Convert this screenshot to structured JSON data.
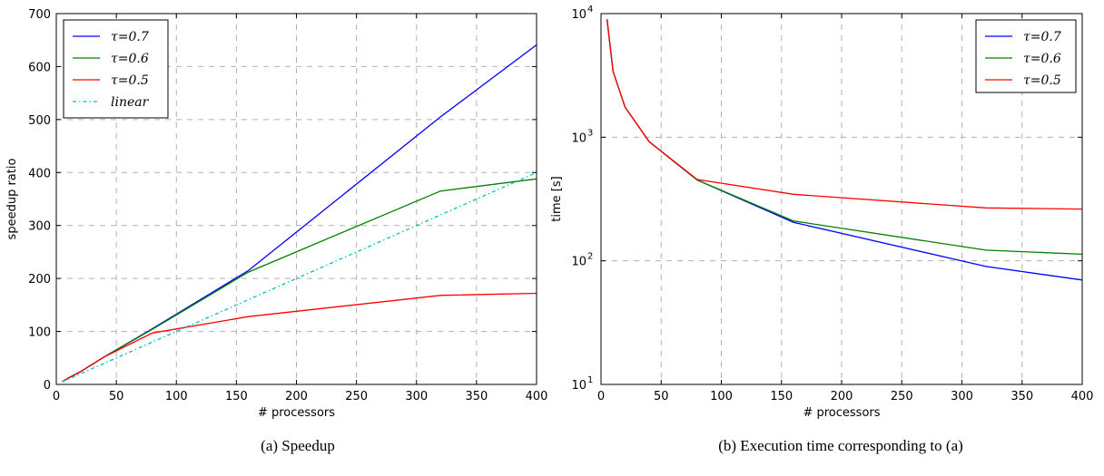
{
  "chart_data": [
    {
      "type": "line",
      "caption": "(a) Speedup",
      "xlabel": "# processors",
      "ylabel": "speedup ratio",
      "xlim": [
        0,
        400
      ],
      "ylim": [
        0,
        700
      ],
      "xticks": [
        0,
        50,
        100,
        150,
        200,
        250,
        300,
        350,
        400
      ],
      "yticks": [
        0,
        100,
        200,
        300,
        400,
        500,
        600,
        700
      ],
      "grid": true,
      "legend_position": "top-left",
      "series": [
        {
          "name": "τ=0.7",
          "color": "#0000ff",
          "style": "solid",
          "x": [
            5,
            10,
            20,
            40,
            80,
            160,
            320,
            400
          ],
          "y": [
            5,
            12,
            24,
            52,
            105,
            215,
            505,
            641
          ]
        },
        {
          "name": "τ=0.6",
          "color": "#008000",
          "style": "solid",
          "x": [
            5,
            10,
            20,
            40,
            80,
            160,
            320,
            400
          ],
          "y": [
            5,
            12,
            24,
            52,
            104,
            212,
            365,
            388
          ]
        },
        {
          "name": "τ=0.5",
          "color": "#ff0000",
          "style": "solid",
          "x": [
            5,
            10,
            20,
            40,
            80,
            160,
            320,
            400
          ],
          "y": [
            5,
            12,
            24,
            52,
            97,
            128,
            168,
            172
          ]
        },
        {
          "name": "linear",
          "color": "#00bfbf",
          "style": "dashdot",
          "x": [
            5,
            400
          ],
          "y": [
            5,
            400
          ]
        }
      ]
    },
    {
      "type": "line",
      "caption": "(b) Execution time corresponding to (a)",
      "xlabel": "# processors",
      "ylabel": "time [s]",
      "xlim": [
        0,
        400
      ],
      "ylim": [
        10,
        10000
      ],
      "yscale": "log",
      "xticks": [
        0,
        50,
        100,
        150,
        200,
        250,
        300,
        350,
        400
      ],
      "yticks": [
        {
          "value": 10,
          "base": "10",
          "exp": "1"
        },
        {
          "value": 100,
          "base": "10",
          "exp": "2"
        },
        {
          "value": 1000,
          "base": "10",
          "exp": "3"
        },
        {
          "value": 10000,
          "base": "10",
          "exp": "4"
        }
      ],
      "grid": true,
      "legend_position": "top-right",
      "series": [
        {
          "name": "τ=0.7",
          "color": "#0000ff",
          "style": "solid",
          "x": [
            5,
            10,
            20,
            40,
            80,
            160,
            320,
            400
          ],
          "y": [
            9000,
            3400,
            1750,
            920,
            450,
            205,
            90,
            70
          ]
        },
        {
          "name": "τ=0.6",
          "color": "#008000",
          "style": "solid",
          "x": [
            5,
            10,
            20,
            40,
            80,
            160,
            320,
            400
          ],
          "y": [
            9000,
            3400,
            1750,
            920,
            450,
            210,
            122,
            113
          ]
        },
        {
          "name": "τ=0.5",
          "color": "#ff0000",
          "style": "solid",
          "x": [
            5,
            10,
            20,
            40,
            80,
            160,
            320,
            400
          ],
          "y": [
            9000,
            3400,
            1750,
            920,
            455,
            345,
            268,
            262
          ]
        }
      ]
    }
  ]
}
